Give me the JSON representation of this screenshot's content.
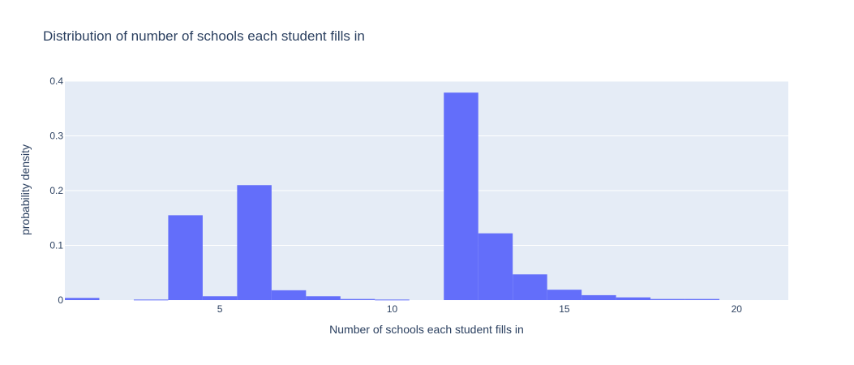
{
  "chart_data": {
    "type": "bar",
    "title": "Distribution of number of schools each student fills in",
    "xlabel": "Number of schools each student fills in",
    "ylabel": "probability density",
    "xlim": [
      0.5,
      21.5
    ],
    "ylim": [
      0,
      0.4
    ],
    "xticks": [
      5,
      10,
      15,
      20
    ],
    "yticks": [
      0,
      0.1,
      0.2,
      0.3,
      0.4
    ],
    "ytick_labels": [
      "0",
      "0.1",
      "0.2",
      "0.3",
      "0.4"
    ],
    "bin_width": 1,
    "bins": [
      {
        "x": 1,
        "value": 0.004
      },
      {
        "x": 2,
        "value": 0
      },
      {
        "x": 3,
        "value": 0.001
      },
      {
        "x": 4,
        "value": 0.155
      },
      {
        "x": 5,
        "value": 0.007
      },
      {
        "x": 6,
        "value": 0.21
      },
      {
        "x": 7,
        "value": 0.018
      },
      {
        "x": 8,
        "value": 0.007
      },
      {
        "x": 9,
        "value": 0.002
      },
      {
        "x": 10,
        "value": 0.001
      },
      {
        "x": 11,
        "value": 0
      },
      {
        "x": 12,
        "value": 0.379
      },
      {
        "x": 13,
        "value": 0.122
      },
      {
        "x": 14,
        "value": 0.047
      },
      {
        "x": 15,
        "value": 0.019
      },
      {
        "x": 16,
        "value": 0.009
      },
      {
        "x": 17,
        "value": 0.005
      },
      {
        "x": 18,
        "value": 0.002
      },
      {
        "x": 19,
        "value": 0.002
      },
      {
        "x": 20,
        "value": 0
      }
    ],
    "grid": true,
    "legend": "none",
    "colors": {
      "bar": "#636efa",
      "plot_bg": "#e5ecf6",
      "grid": "#ffffff",
      "text": "#2a3f5f"
    }
  }
}
